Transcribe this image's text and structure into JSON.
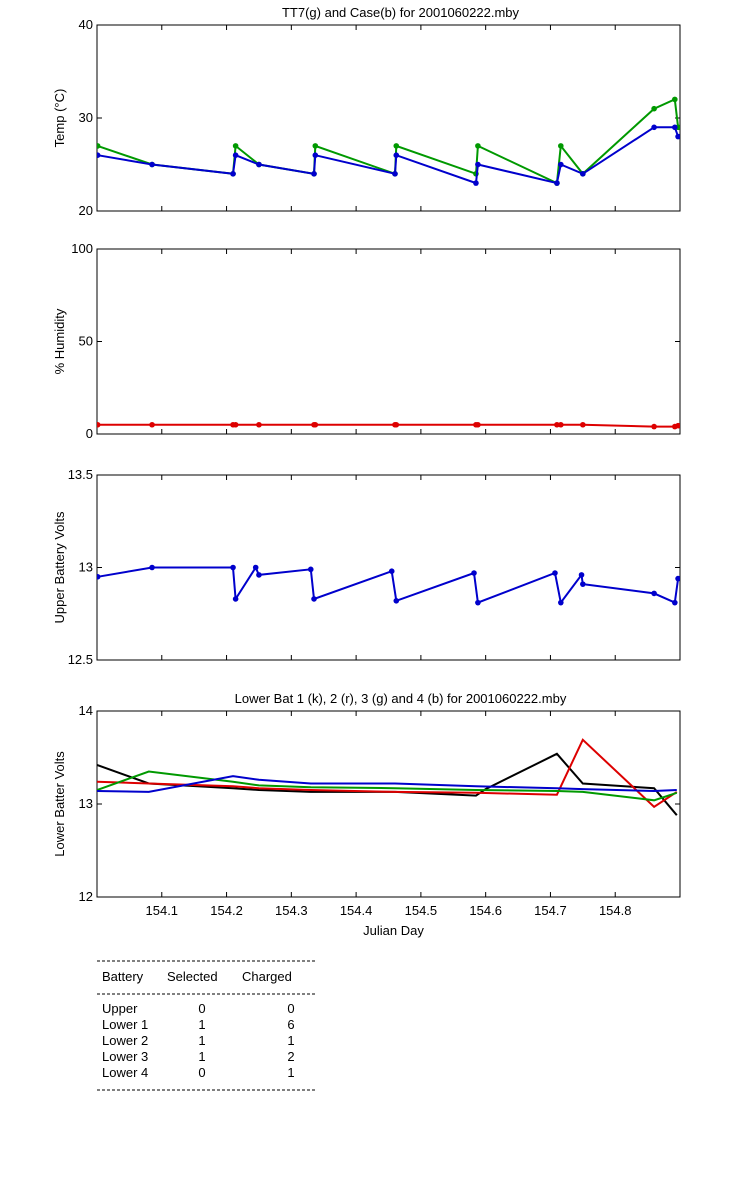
{
  "chart_data": [
    {
      "type": "line",
      "title": "TT7(g) and Case(b) for 2001060222.mby",
      "ylabel": "Temp  (°C)",
      "xlabel": "",
      "xlim": [
        154.0,
        154.9
      ],
      "ylim": [
        20,
        40
      ],
      "yticks": [
        20,
        30,
        40
      ],
      "ytick_labels": [
        "20",
        "30",
        "40"
      ],
      "markers": true,
      "series": [
        {
          "name": "TT7",
          "color": "#009900",
          "x": [
            154.001,
            154.085,
            154.21,
            154.214,
            154.25,
            154.335,
            154.337,
            154.46,
            154.462,
            154.585,
            154.588,
            154.71,
            154.716,
            154.75,
            154.86,
            154.892,
            154.897
          ],
          "y": [
            27,
            25,
            24,
            27,
            25,
            24,
            27,
            24,
            27,
            24,
            27,
            23,
            27,
            24,
            31,
            32,
            29
          ]
        },
        {
          "name": "Case",
          "color": "#0000cc",
          "x": [
            154.001,
            154.085,
            154.21,
            154.214,
            154.25,
            154.335,
            154.337,
            154.46,
            154.462,
            154.585,
            154.588,
            154.71,
            154.716,
            154.75,
            154.86,
            154.892,
            154.897
          ],
          "y": [
            26,
            25,
            24,
            26,
            25,
            24,
            26,
            24,
            26,
            23,
            25,
            23,
            25,
            24,
            29,
            29,
            28
          ]
        }
      ]
    },
    {
      "type": "line",
      "title": "",
      "ylabel": "% Humidity",
      "xlabel": "",
      "xlim": [
        154.0,
        154.9
      ],
      "ylim": [
        0,
        100
      ],
      "yticks": [
        0,
        50,
        100
      ],
      "ytick_labels": [
        "0",
        "50",
        "100"
      ],
      "markers": true,
      "series": [
        {
          "name": "Humidity",
          "color": "#dd0000",
          "x": [
            154.001,
            154.085,
            154.21,
            154.214,
            154.25,
            154.335,
            154.337,
            154.46,
            154.462,
            154.585,
            154.588,
            154.71,
            154.716,
            154.75,
            154.86,
            154.892,
            154.897
          ],
          "y": [
            5,
            5,
            5,
            5,
            5,
            5,
            5,
            5,
            5,
            5,
            5,
            5,
            5,
            5,
            4,
            4,
            4.5
          ]
        }
      ]
    },
    {
      "type": "line",
      "title": "",
      "ylabel": "Upper Battery Volts",
      "xlabel": "",
      "xlim": [
        154.0,
        154.9
      ],
      "ylim": [
        12.5,
        13.5
      ],
      "yticks": [
        12.5,
        13,
        13.5
      ],
      "ytick_labels": [
        "12.5",
        "13",
        "13.5"
      ],
      "markers": true,
      "series": [
        {
          "name": "Upper",
          "color": "#0000cc",
          "x": [
            154.001,
            154.085,
            154.21,
            154.214,
            154.245,
            154.25,
            154.33,
            154.335,
            154.455,
            154.462,
            154.582,
            154.588,
            154.707,
            154.716,
            154.748,
            154.75,
            154.86,
            154.892,
            154.897
          ],
          "y": [
            12.95,
            13.0,
            13.0,
            12.83,
            13.0,
            12.96,
            12.99,
            12.83,
            12.98,
            12.82,
            12.97,
            12.81,
            12.97,
            12.81,
            12.96,
            12.91,
            12.86,
            12.81,
            12.94
          ]
        }
      ]
    },
    {
      "type": "line",
      "title": "Lower Bat 1 (k), 2 (r), 3 (g) and 4 (b) for 2001060222.mby",
      "ylabel": "Lower Batter Volts",
      "xlabel": "Julian Day",
      "xlim": [
        154.0,
        154.9
      ],
      "ylim": [
        12,
        14
      ],
      "yticks": [
        12,
        13,
        14
      ],
      "ytick_labels": [
        "12",
        "13",
        "14"
      ],
      "xticks": [
        154.1,
        154.2,
        154.3,
        154.4,
        154.5,
        154.6,
        154.7,
        154.8
      ],
      "xtick_labels": [
        "154.1",
        "154.2",
        "154.3",
        "154.4",
        "154.5",
        "154.6",
        "154.7",
        "154.8"
      ],
      "markers": false,
      "series": [
        {
          "name": "Lower 1",
          "color": "#000000",
          "x": [
            154.0,
            154.08,
            154.21,
            154.25,
            154.33,
            154.46,
            154.585,
            154.6,
            154.71,
            154.75,
            154.86,
            154.895
          ],
          "y": [
            13.42,
            13.22,
            13.17,
            13.15,
            13.13,
            13.13,
            13.09,
            13.16,
            13.54,
            13.22,
            13.17,
            12.88
          ]
        },
        {
          "name": "Lower 2",
          "color": "#dd0000",
          "x": [
            154.0,
            154.08,
            154.21,
            154.25,
            154.33,
            154.46,
            154.585,
            154.71,
            154.75,
            154.86,
            154.895
          ],
          "y": [
            13.24,
            13.22,
            13.19,
            13.17,
            13.15,
            13.13,
            13.12,
            13.1,
            13.69,
            12.97,
            13.13
          ]
        },
        {
          "name": "Lower 3",
          "color": "#009900",
          "x": [
            154.0,
            154.08,
            154.21,
            154.25,
            154.33,
            154.46,
            154.585,
            154.71,
            154.75,
            154.86,
            154.895
          ],
          "y": [
            13.15,
            13.35,
            13.24,
            13.2,
            13.18,
            13.17,
            13.15,
            13.14,
            13.13,
            13.04,
            13.12
          ]
        },
        {
          "name": "Lower 4",
          "color": "#0000cc",
          "x": [
            154.0,
            154.08,
            154.21,
            154.25,
            154.33,
            154.46,
            154.585,
            154.71,
            154.75,
            154.86,
            154.895
          ],
          "y": [
            13.14,
            13.13,
            13.3,
            13.26,
            13.22,
            13.22,
            13.19,
            13.17,
            13.16,
            13.14,
            13.15
          ]
        }
      ]
    }
  ],
  "battery_table": {
    "headers": [
      "Battery",
      "Selected",
      "Charged"
    ],
    "rows": [
      [
        "Upper",
        "0",
        "0"
      ],
      [
        "Lower 1",
        "1",
        "6"
      ],
      [
        "Lower 2",
        "1",
        "1"
      ],
      [
        "Lower 3",
        "1",
        "2"
      ],
      [
        "Lower 4",
        "0",
        "1"
      ]
    ]
  }
}
